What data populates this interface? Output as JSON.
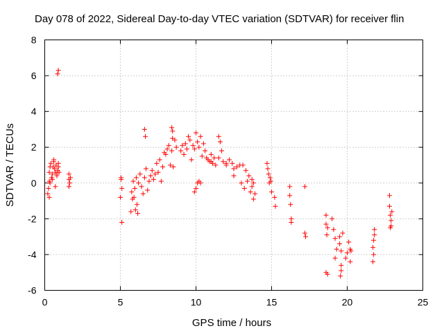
{
  "chart_data": {
    "type": "scatter",
    "title": "Day 078 of 2022, Sidereal Day-to-day VTEC variation (SDTVAR) for receiver flin",
    "xlabel": "GPS time / hours",
    "ylabel": "SDTVAR / TECUs",
    "xlim": [
      0,
      25
    ],
    "ylim": [
      -6,
      8
    ],
    "xticks": [
      0,
      5,
      10,
      15,
      20,
      25
    ],
    "yticks": [
      -6,
      -4,
      -2,
      0,
      2,
      4,
      6,
      8
    ],
    "grid": true,
    "marker": "+",
    "color": "#ff0000",
    "series": [
      {
        "name": "SDTVAR",
        "x": [
          0.2,
          0.25,
          0.3,
          0.3,
          0.35,
          0.4,
          0.45,
          0.5,
          0.55,
          0.6,
          0.65,
          0.7,
          0.75,
          0.8,
          0.85,
          0.9,
          0.3,
          0.35,
          0.5,
          0.6,
          0.7,
          0.8,
          0.9,
          0.95,
          0.85,
          0.9,
          1.6,
          1.6,
          1.65,
          1.7,
          1.6,
          5.0,
          5.05,
          5.1,
          5.05,
          5.1,
          5.7,
          5.75,
          5.8,
          5.85,
          5.9,
          5.95,
          6.0,
          6.05,
          6.1,
          6.15,
          6.2,
          6.3,
          6.4,
          6.5,
          6.6,
          6.7,
          6.8,
          6.9,
          7.0,
          7.1,
          7.2,
          7.3,
          7.4,
          7.5,
          7.6,
          7.7,
          7.8,
          7.9,
          8.0,
          8.1,
          8.2,
          8.3,
          8.4,
          8.5,
          8.6,
          8.7,
          6.6,
          6.65,
          8.4,
          8.45,
          8.45,
          9.0,
          9.1,
          9.2,
          9.3,
          9.4,
          9.5,
          9.6,
          9.7,
          9.8,
          9.9,
          10.0,
          10.1,
          10.2,
          10.3,
          10.4,
          10.5,
          10.6,
          10.7,
          10.8,
          10.9,
          11.0,
          11.1,
          11.2,
          11.3,
          11.5,
          11.6,
          11.7,
          11.8,
          12.0,
          12.2,
          12.4,
          12.5,
          12.7,
          12.9,
          13.1,
          13.3,
          9.9,
          10.0,
          10.1,
          10.2,
          10.3,
          11.0,
          11.5,
          12.0,
          12.5,
          13.0,
          13.2,
          13.4,
          13.5,
          13.6,
          13.7,
          13.8,
          13.9,
          13.7,
          13.8,
          14.7,
          14.75,
          14.8,
          14.85,
          14.9,
          14.95,
          15.0,
          15.2,
          15.25,
          16.2,
          16.2,
          16.25,
          16.3,
          16.3,
          17.2,
          17.2,
          17.25,
          18.6,
          18.6,
          18.65,
          18.7,
          18.6,
          18.7,
          19.0,
          19.1,
          19.2,
          19.3,
          19.2,
          19.5,
          19.5,
          19.6,
          19.6,
          19.55,
          19.6,
          19.7,
          19.9,
          20.0,
          20.1,
          20.2,
          20.2,
          20.25,
          21.7,
          21.75,
          21.7,
          21.8,
          21.8,
          21.75,
          22.8,
          22.8,
          22.85,
          22.9,
          22.9,
          22.95,
          22.85
        ],
        "y": [
          -0.6,
          -0.3,
          0.1,
          0.6,
          0.9,
          1.1,
          0.3,
          0.5,
          0.9,
          1.2,
          0.8,
          0.6,
          1.0,
          0.4,
          0.7,
          0.9,
          -0.8,
          0.0,
          0.2,
          1.3,
          -0.2,
          0.5,
          1.1,
          0.6,
          6.1,
          6.3,
          0.5,
          0.2,
          0.0,
          0.3,
          -0.2,
          -0.8,
          0.3,
          -2.2,
          0.2,
          -0.3,
          -1.6,
          -0.5,
          -0.9,
          0.1,
          -0.8,
          -0.3,
          -1.5,
          0.3,
          -1.2,
          -1.7,
          0.0,
          0.5,
          -0.2,
          -0.6,
          0.3,
          0.8,
          -0.4,
          0.1,
          0.4,
          0.7,
          0.2,
          0.5,
          1.1,
          0.6,
          1.3,
          0.1,
          0.9,
          1.7,
          1.6,
          1.9,
          2.1,
          1.0,
          1.8,
          0.9,
          2.4,
          2.0,
          3.0,
          2.6,
          3.1,
          2.9,
          2.5,
          1.8,
          2.1,
          1.6,
          2.2,
          1.9,
          2.6,
          2.4,
          1.3,
          2.1,
          1.9,
          2.8,
          2.3,
          2.0,
          2.6,
          1.5,
          2.2,
          1.8,
          1.4,
          1.3,
          1.2,
          1.6,
          1.1,
          1.4,
          1.0,
          2.6,
          2.3,
          1.8,
          1.2,
          1.0,
          1.3,
          1.1,
          0.8,
          0.9,
          1.0,
          1.0,
          0.7,
          -0.5,
          -0.3,
          0.0,
          0.1,
          0.0,
          1.2,
          1.4,
          1.1,
          0.4,
          0.0,
          -0.3,
          0.1,
          0.4,
          -0.5,
          -0.2,
          -0.9,
          -0.6,
          0.2,
          0.0,
          1.1,
          0.8,
          0.5,
          0.0,
          0.3,
          0.1,
          -0.5,
          -0.8,
          -1.3,
          -0.2,
          -0.7,
          -1.2,
          -2.0,
          -2.2,
          -0.2,
          -2.8,
          -3.0,
          -1.8,
          -2.3,
          -2.9,
          -2.5,
          -5.0,
          -5.1,
          -2.0,
          -2.6,
          -3.1,
          -3.7,
          -4.2,
          -3.0,
          -3.4,
          -4.6,
          -4.9,
          -5.2,
          -3.8,
          -2.8,
          -4.2,
          -3.9,
          -3.3,
          -3.7,
          -4.4,
          -3.8,
          -3.6,
          -4.0,
          -4.4,
          -2.6,
          -2.9,
          -3.2,
          -0.7,
          -1.3,
          -1.8,
          -2.1,
          -2.4,
          -1.6,
          -2.5
        ]
      }
    ]
  }
}
